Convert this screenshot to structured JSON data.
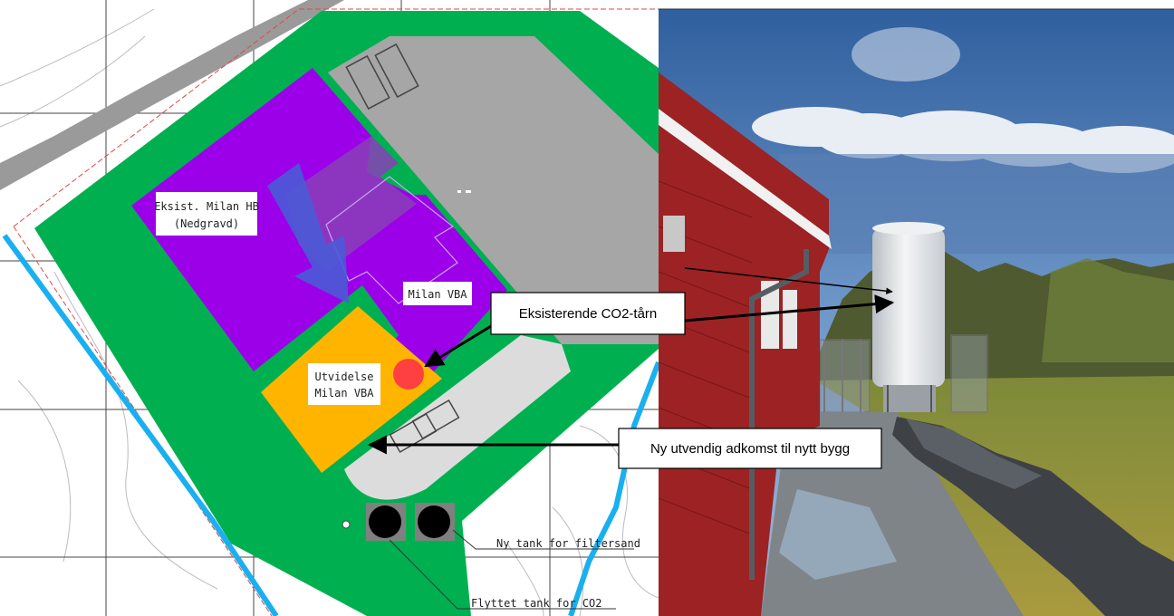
{
  "site_plan": {
    "labels": {
      "existing_building_line1": "Eksist. Milan HB",
      "existing_building_line2": "(Nedgravd)",
      "vba_building": "Milan VBA",
      "extension_line1": "Utvidelse",
      "extension_line2": "Milan VBA",
      "new_tank": "Ny tank for filtersand",
      "moved_tank": "Flyttet tank for CO2"
    },
    "colors": {
      "existing_building": "#9b00e8",
      "extension": "#ffb400",
      "landscaping": "#00b050",
      "paved": "#a6a6a6",
      "marker": "#ff4040",
      "waterline": "#1ab0f0"
    }
  },
  "callouts": {
    "co2_tower": "Eksisterende CO2-tårn",
    "new_access": "Ny utvendig adkomst til nytt bygg"
  },
  "photo": {
    "colors": {
      "sky": "#4d7ab8",
      "building": "#9c2224",
      "grass": "#8a9a3c",
      "tower": "#e4e6e8"
    }
  }
}
